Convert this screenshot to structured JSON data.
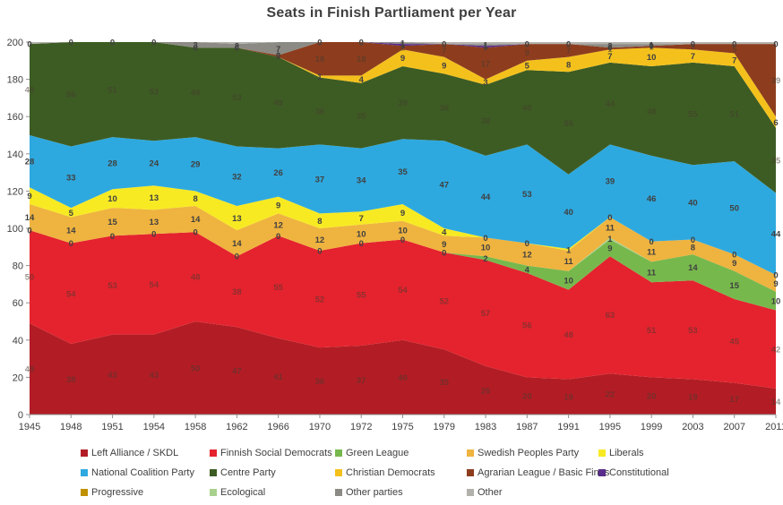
{
  "title": "Seats in Finish Partliament per Year",
  "chart_data": {
    "type": "area",
    "stacked": true,
    "grid": false,
    "legend_position": "bottom",
    "background": "#FFFFFF",
    "total_seats": 200,
    "ylim": [
      0,
      200
    ],
    "y_ticks": [
      0,
      20,
      40,
      60,
      80,
      100,
      120,
      140,
      160,
      180,
      200
    ],
    "x_categories": [
      "1945",
      "1948",
      "1951",
      "1954",
      "1958",
      "1962",
      "1966",
      "1970",
      "1972",
      "1975",
      "1979",
      "1983",
      "1987",
      "1991",
      "1995",
      "1999",
      "2003",
      "2007",
      "2011"
    ],
    "label_color": "#404040",
    "label_faint_color": "rgba(70,58,48,0.55)",
    "axis_color": "#8f8f8f",
    "axis_text_color": "#404040",
    "series": [
      {
        "id": "left_alliance",
        "name": "Left Alliance / SKDL",
        "color": "#B21D25",
        "labels": "all",
        "label_style": "faint",
        "values": [
          49,
          38,
          43,
          43,
          50,
          47,
          41,
          36,
          37,
          40,
          35,
          26,
          20,
          19,
          22,
          20,
          19,
          17,
          14
        ]
      },
      {
        "id": "sdp",
        "name": "Finnish Social Democrats",
        "color": "#E4232E",
        "labels": "all",
        "label_style": "faint",
        "values": [
          50,
          54,
          53,
          54,
          48,
          38,
          55,
          52,
          55,
          54,
          52,
          57,
          56,
          48,
          63,
          51,
          53,
          45,
          42
        ]
      },
      {
        "id": "green_league",
        "name": "Green League",
        "color": "#77B84D",
        "labels": "all",
        "label_style": "normal",
        "values": [
          0,
          0,
          0,
          0,
          0,
          0,
          0,
          0,
          0,
          0,
          0,
          2,
          4,
          10,
          9,
          11,
          14,
          15,
          10
        ]
      },
      {
        "id": "ecological",
        "name": "Ecological",
        "color": "#A9D18E",
        "labels": "nonzero",
        "label_style": "normal",
        "values": [
          0,
          0,
          0,
          0,
          0,
          0,
          0,
          0,
          0,
          0,
          0,
          0,
          0,
          0,
          1,
          0,
          0,
          0,
          0
        ]
      },
      {
        "id": "swedish",
        "name": "Swedish Peoples Party",
        "color": "#EFB33F",
        "labels": "all",
        "label_style": "normal",
        "values": [
          14,
          14,
          15,
          13,
          14,
          14,
          12,
          12,
          10,
          10,
          9,
          10,
          12,
          11,
          11,
          11,
          8,
          9,
          9
        ]
      },
      {
        "id": "liberals",
        "name": "Liberals",
        "color": "#F7EA23",
        "labels": "all",
        "label_style": "normal",
        "values": [
          9,
          5,
          10,
          13,
          8,
          13,
          9,
          8,
          7,
          9,
          4,
          0,
          0,
          1,
          0,
          0,
          0,
          0,
          0
        ]
      },
      {
        "id": "progressive",
        "name": "Progressive",
        "color": "#BF9000",
        "labels": "none",
        "label_style": "normal",
        "values": [
          0,
          0,
          0,
          0,
          0,
          0,
          0,
          0,
          0,
          0,
          0,
          0,
          0,
          0,
          0,
          0,
          0,
          0,
          0
        ]
      },
      {
        "id": "ncp",
        "name": "National Coalition Party",
        "color": "#2EA9DF",
        "labels": "all",
        "label_style": "normal",
        "values": [
          28,
          33,
          28,
          24,
          29,
          32,
          26,
          37,
          34,
          35,
          47,
          44,
          53,
          40,
          39,
          46,
          40,
          50,
          44
        ]
      },
      {
        "id": "centre",
        "name": "Centre Party",
        "color": "#3D5C23",
        "labels": "all",
        "label_style": "faint",
        "values": [
          49,
          56,
          51,
          53,
          48,
          53,
          49,
          36,
          35,
          39,
          36,
          38,
          40,
          55,
          44,
          48,
          55,
          51,
          35
        ]
      },
      {
        "id": "christian_democrats",
        "name": "Christian Democrats",
        "color": "#F4C11C",
        "labels": "nonzero",
        "label_style": "normal",
        "values": [
          0,
          0,
          0,
          0,
          0,
          0,
          0,
          1,
          4,
          9,
          9,
          3,
          5,
          8,
          7,
          10,
          7,
          7,
          6
        ]
      },
      {
        "id": "agrarian_basic_finns",
        "name": "Agrarian  League / Basic Finns",
        "color": "#8D3D1E",
        "labels": "nonzero",
        "label_style": "faint",
        "values": [
          0,
          0,
          0,
          0,
          0,
          0,
          1,
          18,
          18,
          2,
          7,
          17,
          9,
          7,
          1,
          1,
          3,
          5,
          39
        ]
      },
      {
        "id": "constitutional",
        "name": "Constitutional",
        "color": "#582C8B",
        "labels": "all",
        "label_style": "normal",
        "values": [
          0,
          0,
          0,
          0,
          0,
          0,
          0,
          0,
          0,
          1,
          0,
          1,
          0,
          0,
          0,
          0,
          0,
          0,
          0
        ]
      },
      {
        "id": "other_parties",
        "name": "Other parties",
        "color": "#8C8A84",
        "labels": "nonzero",
        "label_style": "normal",
        "values": [
          0,
          0,
          0,
          0,
          3,
          2,
          7,
          0,
          0,
          1,
          0,
          1,
          0,
          0,
          2,
          1,
          0,
          0,
          0
        ]
      },
      {
        "id": "other",
        "name": "Other",
        "color": "#B3B1AC",
        "labels": "none",
        "label_style": "normal",
        "values": [
          1,
          0,
          0,
          0,
          0,
          1,
          0,
          0,
          0,
          0,
          1,
          1,
          1,
          1,
          1,
          1,
          1,
          1,
          1
        ]
      }
    ],
    "legend": [
      {
        "label": "Left Alliance / SKDL",
        "series_id": "left_alliance",
        "row": 0,
        "col": 0
      },
      {
        "label": "Finnish Social Democrats",
        "series_id": "sdp",
        "row": 0,
        "col": 1
      },
      {
        "label": "Green League",
        "series_id": "green_league",
        "row": 0,
        "col": 2
      },
      {
        "label": "Swedish Peoples Party",
        "series_id": "swedish",
        "row": 0,
        "col": 3
      },
      {
        "label": "Liberals",
        "series_id": "liberals",
        "row": 0,
        "col": 4
      },
      {
        "label": "National Coalition Party",
        "series_id": "ncp",
        "row": 1,
        "col": 0
      },
      {
        "label": "Centre Party",
        "series_id": "centre",
        "row": 1,
        "col": 1
      },
      {
        "label": "Christian Democrats",
        "series_id": "christian_democrats",
        "row": 1,
        "col": 2
      },
      {
        "label": "Agrarian  League / Basic Finns",
        "series_id": "agrarian_basic_finns",
        "row": 1,
        "col": 3
      },
      {
        "label": "Constitutional",
        "series_id": "constitutional",
        "row": 1,
        "col": 4
      },
      {
        "label": "Progressive",
        "series_id": "progressive",
        "row": 2,
        "col": 0
      },
      {
        "label": "Ecological",
        "series_id": "ecological",
        "row": 2,
        "col": 1
      },
      {
        "label": "Other parties",
        "series_id": "other_parties",
        "row": 2,
        "col": 2
      },
      {
        "label": "Other",
        "series_id": "other",
        "row": 2,
        "col": 3
      }
    ]
  }
}
